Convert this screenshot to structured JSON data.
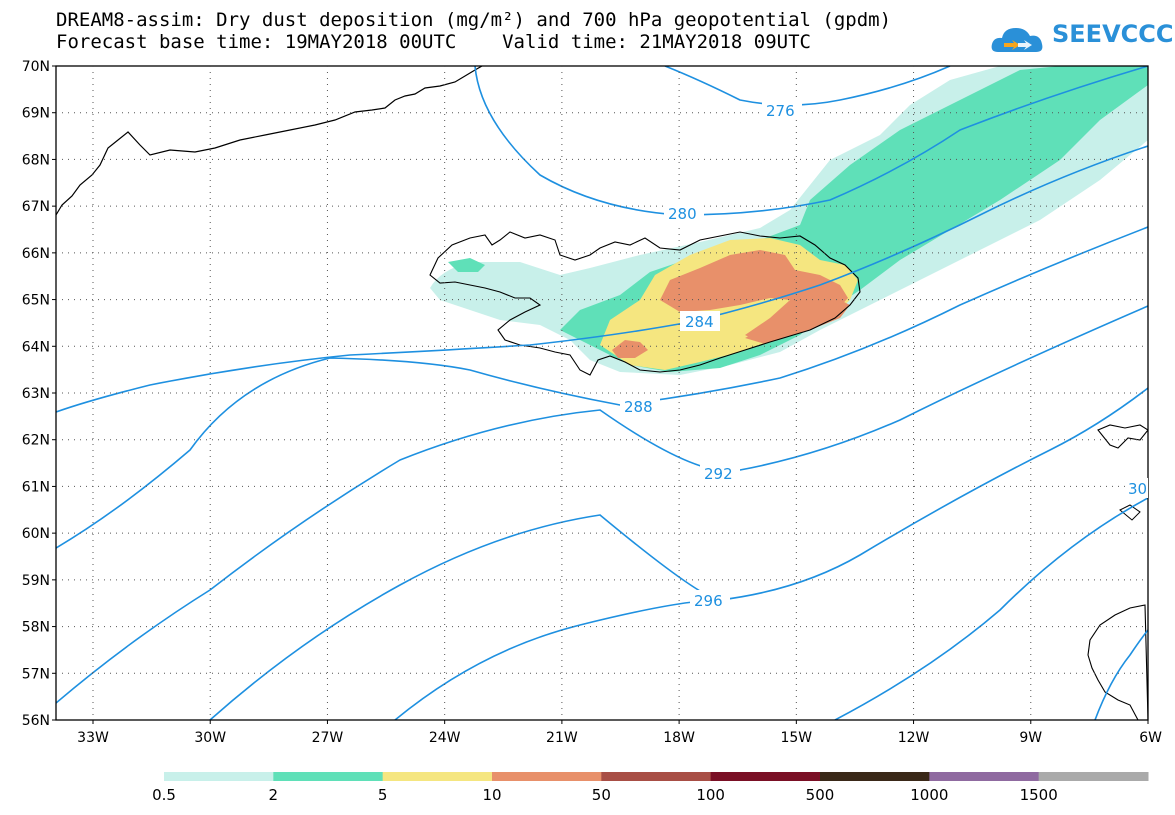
{
  "header": {
    "title_line1": "DREAM8-assim: Dry dust deposition (mg/m²) and 700 hPa geopotential (gpdm)",
    "title_line2": "Forecast base time: 19MAY2018 00UTC    Valid time: 21MAY2018 09UTC",
    "logo_text": "SEEVCCC"
  },
  "map": {
    "lat_labels": [
      "70N",
      "69N",
      "68N",
      "67N",
      "66N",
      "65N",
      "64N",
      "63N",
      "62N",
      "61N",
      "60N",
      "59N",
      "58N",
      "57N",
      "56N"
    ],
    "lon_labels": [
      "33W",
      "30W",
      "27W",
      "24W",
      "21W",
      "18W",
      "15W",
      "12W",
      "9W",
      "6W"
    ],
    "contour_labels": [
      "276",
      "280",
      "284",
      "288",
      "292",
      "296",
      "30"
    ],
    "contour_color": "#1e90e0"
  },
  "legend": {
    "labels": [
      "0.5",
      "2",
      "5",
      "10",
      "50",
      "100",
      "500",
      "1000",
      "1500"
    ],
    "colors": [
      "#c8f0ea",
      "#5fe0b8",
      "#f5e680",
      "#e8906a",
      "#a84e45",
      "#7a0f25",
      "#3a2818",
      "#8f6aa0",
      "#aaaaaa"
    ]
  }
}
